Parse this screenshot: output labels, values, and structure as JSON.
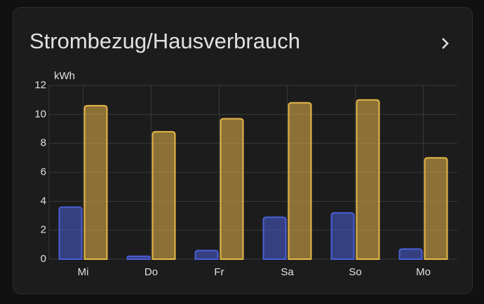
{
  "title": "Strombezug/Hausverbrauch",
  "chart_data": {
    "type": "bar",
    "y_label": "kWh",
    "categories": [
      "Mi",
      "Do",
      "Fr",
      "Sa",
      "So",
      "Mo"
    ],
    "series": [
      {
        "color": "#4a5fd6",
        "values": [
          3.6,
          0.2,
          0.6,
          2.9,
          3.2,
          0.7
        ]
      },
      {
        "color": "#e8b84a",
        "values": [
          10.6,
          8.8,
          9.7,
          10.8,
          11.0,
          7.0
        ]
      }
    ],
    "ylim": [
      0,
      12
    ],
    "yticks": [
      0,
      2,
      4,
      6,
      8,
      10,
      12
    ],
    "grid": true
  }
}
